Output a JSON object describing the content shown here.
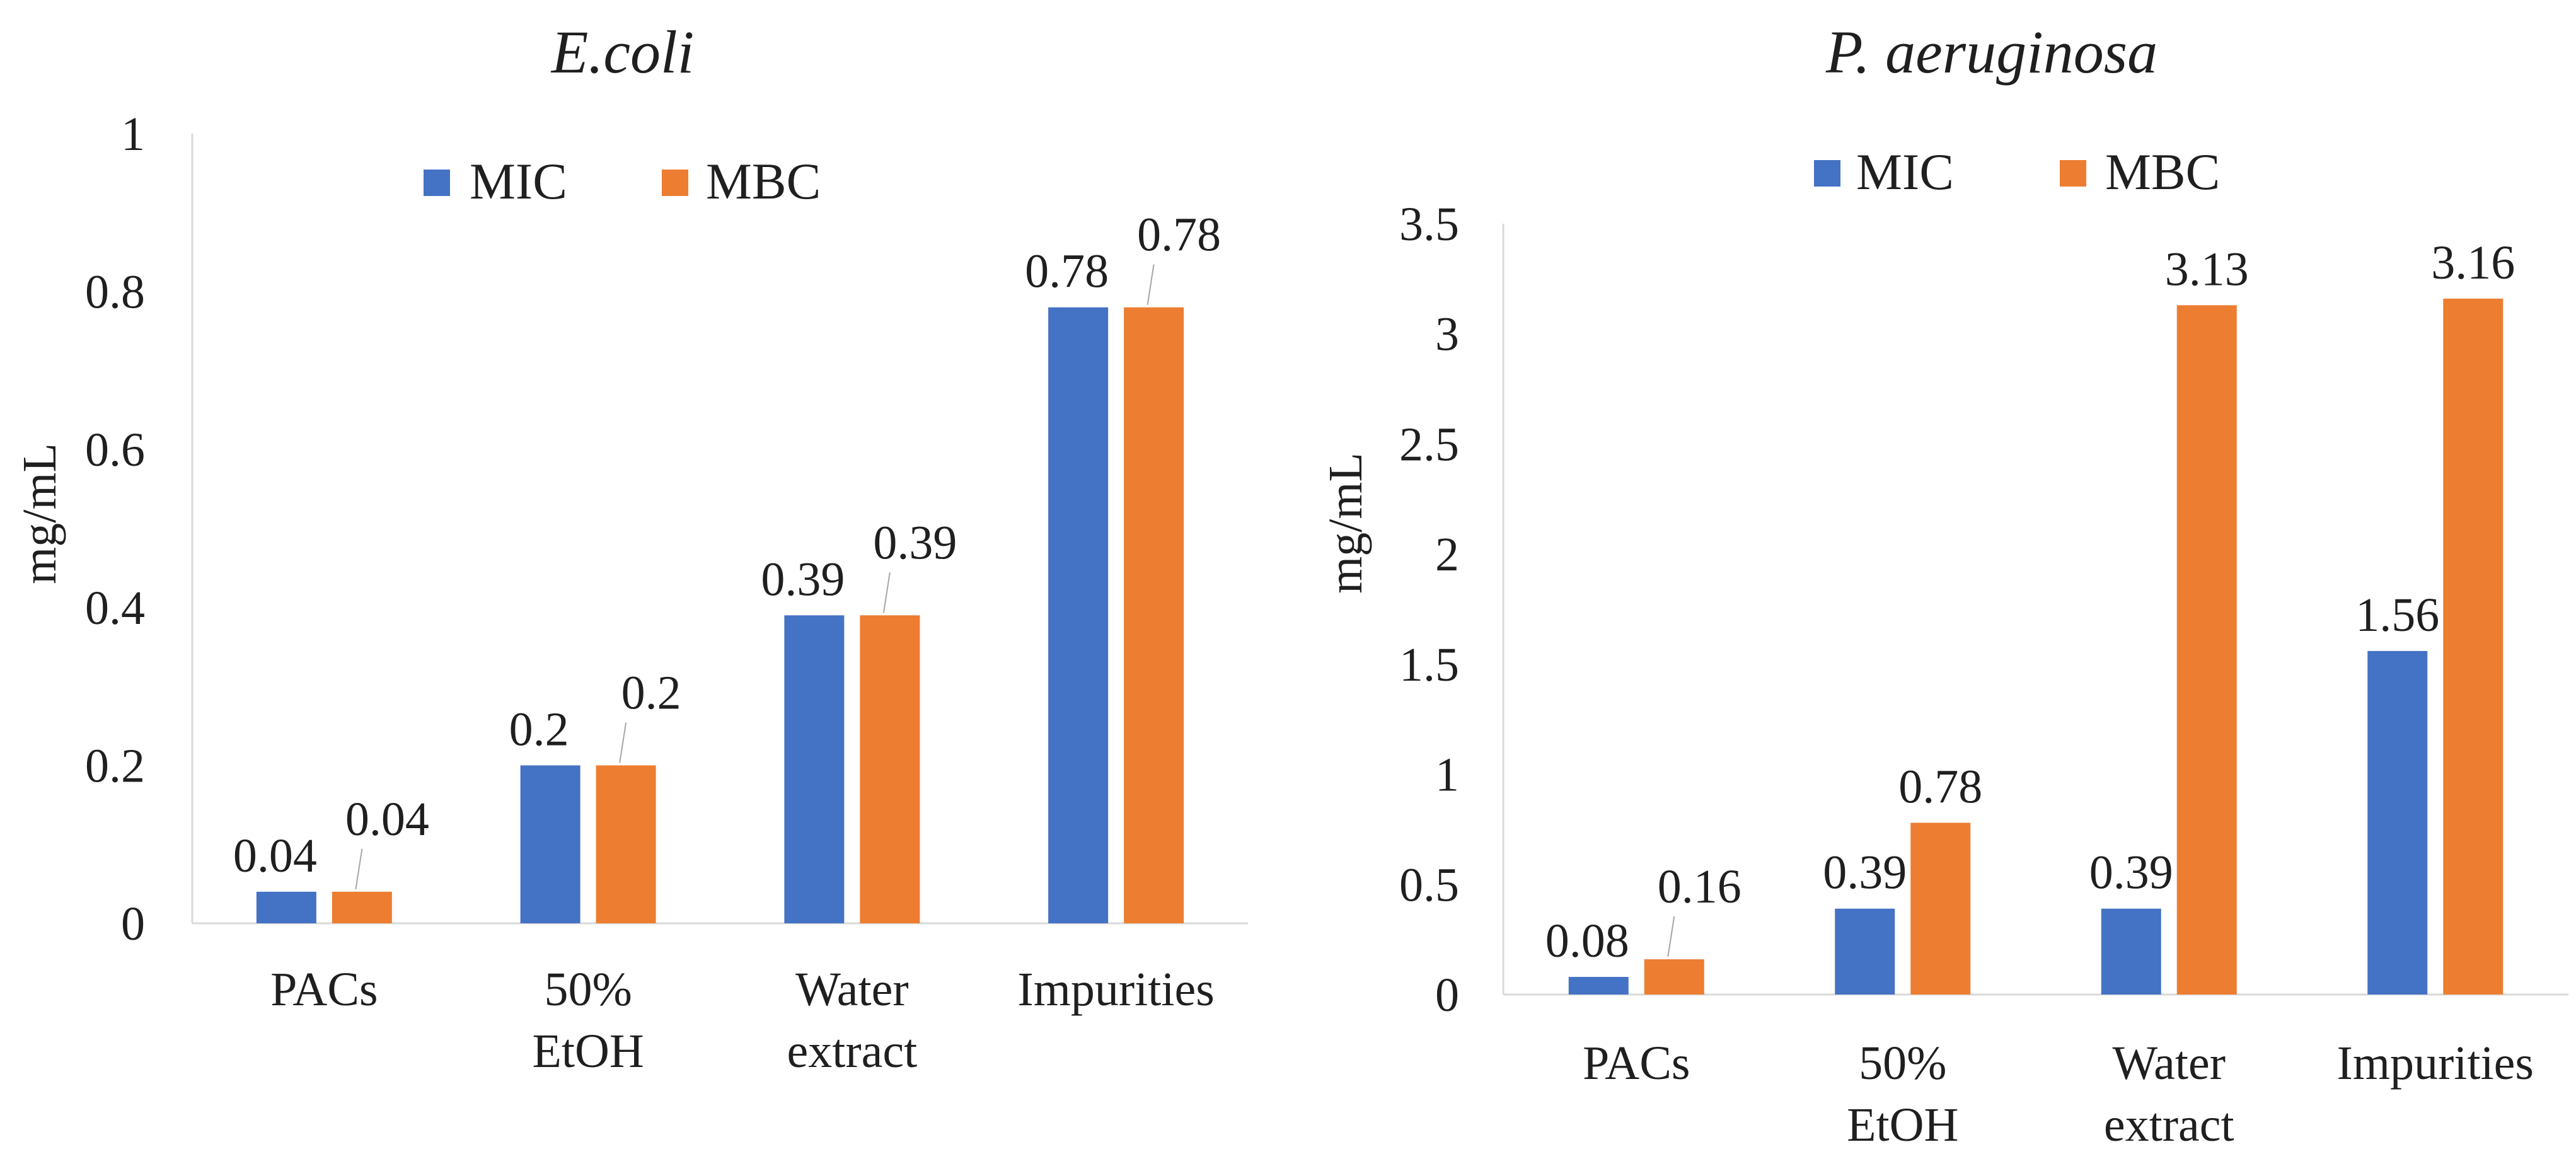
{
  "chart_data": [
    {
      "type": "bar",
      "title": "E.coli",
      "xlabel": "",
      "ylabel": "mg/mL",
      "ylim": [
        0,
        1
      ],
      "yticks": [
        "0",
        "0.2",
        "0.4",
        "0.6",
        "0.8",
        "1"
      ],
      "categories": [
        [
          "PACs"
        ],
        [
          "50%",
          "EtOH"
        ],
        [
          "Water",
          "extract"
        ],
        [
          "Impurities"
        ]
      ],
      "series": [
        {
          "name": "MIC",
          "values": [
            0.04,
            0.2,
            0.39,
            0.78
          ],
          "labels": [
            "0.04",
            "0.2",
            "0.39",
            "0.78"
          ],
          "color": "#4472C4"
        },
        {
          "name": "MBC",
          "values": [
            0.04,
            0.2,
            0.39,
            0.78
          ],
          "labels": [
            "0.04",
            "0.2",
            "0.39",
            "0.78"
          ],
          "color": "#ED7D31"
        }
      ],
      "legend": "top",
      "grid": false
    },
    {
      "type": "bar",
      "title": "P. aeruginosa",
      "xlabel": "",
      "ylabel": "mg/mL",
      "ylim": [
        0,
        3.5
      ],
      "yticks": [
        "0",
        "0.5",
        "1",
        "1.5",
        "2",
        "2.5",
        "3",
        "3.5"
      ],
      "categories": [
        [
          "PACs"
        ],
        [
          "50%",
          "EtOH"
        ],
        [
          "Water",
          "extract"
        ],
        [
          "Impurities"
        ]
      ],
      "series": [
        {
          "name": "MIC",
          "values": [
            0.08,
            0.39,
            0.39,
            1.56
          ],
          "labels": [
            "0.08",
            "0.39",
            "0.39",
            "1.56"
          ],
          "color": "#4472C4"
        },
        {
          "name": "MBC",
          "values": [
            0.16,
            0.78,
            3.13,
            3.16
          ],
          "labels": [
            "0.16",
            "0.78",
            "3.13",
            "3.16"
          ],
          "color": "#ED7D31"
        }
      ],
      "legend": "top",
      "grid": false
    }
  ]
}
